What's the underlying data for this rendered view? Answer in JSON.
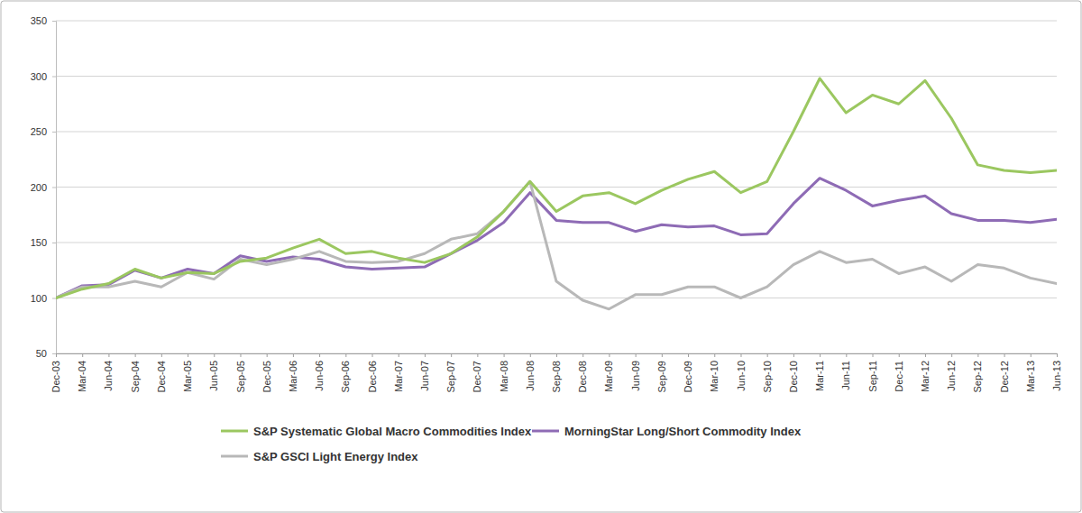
{
  "chart_data": {
    "type": "line",
    "x": [
      "Dec-03",
      "Mar-04",
      "Jun-04",
      "Sep-04",
      "Dec-04",
      "Mar-05",
      "Jun-05",
      "Sep-05",
      "Dec-05",
      "Mar-06",
      "Jun-06",
      "Sep-06",
      "Dec-06",
      "Mar-07",
      "Jun-07",
      "Sep-07",
      "Dec-07",
      "Mar-08",
      "Jun-08",
      "Sep-08",
      "Dec-08",
      "Mar-09",
      "Jun-09",
      "Sep-09",
      "Dec-09",
      "Mar-10",
      "Jun-10",
      "Sep-10",
      "Dec-10",
      "Mar-11",
      "Jun-11",
      "Sep-11",
      "Dec-11",
      "Mar-12",
      "Jun-12",
      "Sep-12",
      "Dec-12",
      "Mar-13",
      "Jun-13"
    ],
    "series": [
      {
        "name": "S&P Systematic Global Macro Commodities Index",
        "color": "#9bc760",
        "values": [
          100,
          108,
          113,
          126,
          118,
          123,
          122,
          133,
          136,
          145,
          153,
          140,
          142,
          136,
          132,
          140,
          155,
          178,
          205,
          178,
          192,
          195,
          185,
          197,
          207,
          214,
          195,
          205,
          250,
          298,
          267,
          283,
          275,
          296,
          262,
          220,
          215,
          213,
          215
        ]
      },
      {
        "name": "MorningStar Long/Short Commodity Index",
        "color": "#8e6bb5",
        "values": [
          100,
          111,
          112,
          125,
          118,
          126,
          122,
          138,
          133,
          137,
          135,
          128,
          126,
          127,
          128,
          140,
          152,
          168,
          195,
          170,
          168,
          168,
          160,
          166,
          164,
          165,
          157,
          158,
          185,
          208,
          197,
          183,
          188,
          192,
          176,
          170,
          170,
          168,
          171
        ]
      },
      {
        "name": "S&P GSCI Light Energy Index",
        "color": "#b8b8b8",
        "values": [
          100,
          110,
          110,
          115,
          110,
          123,
          117,
          135,
          130,
          135,
          142,
          133,
          132,
          133,
          140,
          153,
          158,
          178,
          205,
          115,
          98,
          90,
          103,
          103,
          110,
          110,
          100,
          110,
          130,
          142,
          132,
          135,
          122,
          128,
          115,
          130,
          127,
          118,
          113
        ]
      }
    ],
    "ylim": [
      50,
      350
    ],
    "yticks": [
      50,
      100,
      150,
      200,
      250,
      300,
      350
    ],
    "grid": true,
    "legend": "bottom"
  }
}
